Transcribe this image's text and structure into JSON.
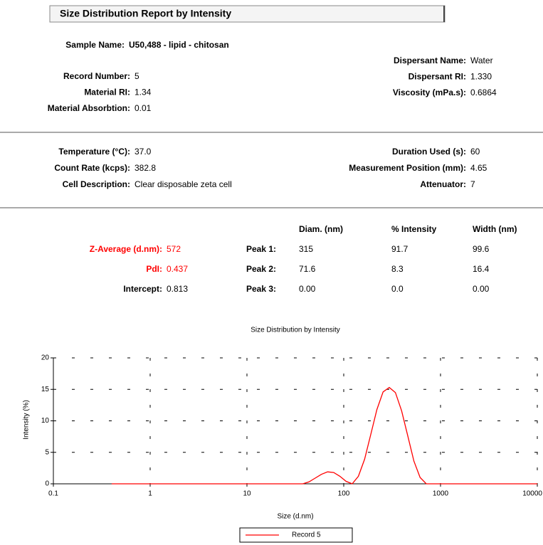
{
  "report": {
    "title": "Size Distribution Report by Intensity",
    "sample_name": {
      "label": "Sample Name:",
      "value": "U50,488 - lipid - chitosan"
    },
    "sample_left": [
      {
        "label": "Record Number:",
        "value": "5"
      },
      {
        "label": "Material RI:",
        "value": "1.34"
      },
      {
        "label": "Material Absorbtion:",
        "value": "0.01"
      }
    ],
    "sample_right": [
      {
        "label": "Dispersant Name:",
        "value": "Water"
      },
      {
        "label": "Dispersant RI:",
        "value": "1.330"
      },
      {
        "label": "Viscosity (mPa.s):",
        "value": "0.6864"
      }
    ],
    "measure_left": [
      {
        "label": "Temperature (°C):",
        "value": "37.0"
      },
      {
        "label": "Count Rate (kcps):",
        "value": "382.8"
      },
      {
        "label": "Cell Description:",
        "value": "Clear disposable zeta cell"
      }
    ],
    "measure_right": [
      {
        "label": "Duration Used (s):",
        "value": "60"
      },
      {
        "label": "Measurement Position (mm):",
        "value": "4.65"
      },
      {
        "label": "Attenuator:",
        "value": "7"
      }
    ],
    "results_left": [
      {
        "label": "Z-Average (d.nm):",
        "value": "572"
      },
      {
        "label": "PdI:",
        "value": "0.437"
      },
      {
        "label": "Intercept:",
        "value": "0.813"
      }
    ],
    "columns": [
      "Diam. (nm)",
      "% Intensity",
      "Width (nm)"
    ],
    "peaks": [
      {
        "label": "Peak 1:",
        "values": [
          "315",
          "91.7",
          "99.6"
        ]
      },
      {
        "label": "Peak 2:",
        "values": [
          "71.6",
          "8.3",
          "16.4"
        ]
      },
      {
        "label": "Peak 3:",
        "values": [
          "0.00",
          "0.0",
          "0.00"
        ]
      }
    ]
  },
  "chart_data": {
    "type": "line",
    "title": "Size Distribution by Intensity",
    "x_label": "Size (d.nm)",
    "y_label": "Intensity (%)",
    "xscale": "log",
    "xlim": [
      0.1,
      10000
    ],
    "ylim": [
      0,
      20
    ],
    "xticks": [
      0.1,
      1,
      10,
      100,
      1000,
      10000
    ],
    "yticks": [
      0,
      5,
      10,
      15,
      20
    ],
    "grid": true,
    "legend": "bottom",
    "x": [
      0.4,
      1,
      10,
      37.8,
      43.8,
      50.7,
      58.8,
      68.1,
      78.8,
      91.3,
      105.7,
      122.4,
      141.8,
      164.2,
      190.1,
      220.2,
      255,
      295.3,
      342,
      396.1,
      458.7,
      531.2,
      615.1,
      712.4,
      825,
      1000,
      10000
    ],
    "series": [
      {
        "name": "Record 5",
        "color": "#ff0000",
        "values": [
          0,
          0,
          0,
          0,
          0.3,
          0.9,
          1.5,
          1.9,
          1.8,
          1.2,
          0.4,
          0,
          1.2,
          3.9,
          7.8,
          11.8,
          14.6,
          15.3,
          14.5,
          11.6,
          7.6,
          3.6,
          1.0,
          0,
          0,
          0,
          0
        ]
      }
    ]
  }
}
